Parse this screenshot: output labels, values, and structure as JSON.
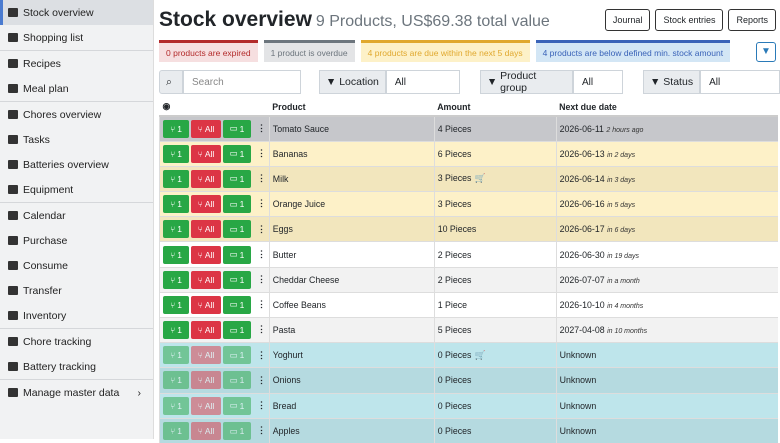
{
  "sidebar": {
    "items": [
      "Stock overview",
      "Shopping list",
      "Recipes",
      "Meal plan",
      "Chores overview",
      "Tasks",
      "Batteries overview",
      "Equipment",
      "Calendar",
      "Purchase",
      "Consume",
      "Transfer",
      "Inventory",
      "Chore tracking",
      "Battery tracking",
      "Manage master data"
    ]
  },
  "header": {
    "title": "Stock overview",
    "subtitle": "9 Products, US$69.38 total value",
    "buttons": [
      "Journal",
      "Stock entries",
      "Reports"
    ]
  },
  "alerts": [
    {
      "text": "0 products are expired",
      "color": "#b32b2b",
      "bg": "#f6dfe0"
    },
    {
      "text": "1 product is overdue",
      "color": "#6c757d",
      "bg": "#e3e4e6"
    },
    {
      "text": "4 products are due within the next 5 days",
      "color": "#e0a82e",
      "bg": "#fdf1c8"
    },
    {
      "text": "4 products are below defined min. stock amount",
      "color": "#3a63b8",
      "bg": "#d3e6f5"
    }
  ],
  "filters": {
    "search": "Search",
    "location": "Location",
    "location_value": "All",
    "group": "Product group",
    "group_value": "All",
    "status": "Status",
    "status_value": "All"
  },
  "table": {
    "columns": [
      "Product",
      "Amount",
      "Next due date"
    ],
    "action_labels": [
      "1",
      "All",
      "1"
    ],
    "rows": [
      {
        "product": "Tomato Sauce",
        "amount": "4 Pieces",
        "due": "2026-06-11",
        "relative": "2 hours ago",
        "bg": "#c6c7cb"
      },
      {
        "product": "Bananas",
        "amount": "6 Pieces",
        "due": "2026-06-13",
        "relative": "in 2 days",
        "bg": "#fdf1c8"
      },
      {
        "product": "Milk",
        "amount": "3 Pieces",
        "cart": true,
        "due": "2026-06-14",
        "relative": "in 3 days",
        "bg": "#f2e6bd"
      },
      {
        "product": "Orange Juice",
        "amount": "3 Pieces",
        "due": "2026-06-16",
        "relative": "in 5 days",
        "bg": "#fdf1c8"
      },
      {
        "product": "Eggs",
        "amount": "10 Pieces",
        "due": "2026-06-17",
        "relative": "in 6 days",
        "bg": "#f2e6bd"
      },
      {
        "product": "Butter",
        "amount": "2 Pieces",
        "due": "2026-06-30",
        "relative": "in 19 days",
        "bg": "#ffffff"
      },
      {
        "product": "Cheddar Cheese",
        "amount": "2 Pieces",
        "due": "2026-07-07",
        "relative": "in a month",
        "bg": "#f2f2f2"
      },
      {
        "product": "Coffee Beans",
        "amount": "1 Piece",
        "due": "2026-10-10",
        "relative": "in 4 months",
        "bg": "#ffffff"
      },
      {
        "product": "Pasta",
        "amount": "5 Pieces",
        "due": "2027-04-08",
        "relative": "in 10 months",
        "bg": "#f2f2f2"
      },
      {
        "product": "Yoghurt",
        "amount": "0 Pieces",
        "cart": true,
        "due": "Unknown",
        "bg": "#bee5eb",
        "faded": true
      },
      {
        "product": "Onions",
        "amount": "0 Pieces",
        "due": "Unknown",
        "bg": "#b5dae0",
        "faded": true
      },
      {
        "product": "Bread",
        "amount": "0 Pieces",
        "due": "Unknown",
        "bg": "#bee5eb",
        "faded": true
      },
      {
        "product": "Apples",
        "amount": "0 Pieces",
        "due": "Unknown",
        "bg": "#b5dae0",
        "faded": true
      }
    ]
  }
}
